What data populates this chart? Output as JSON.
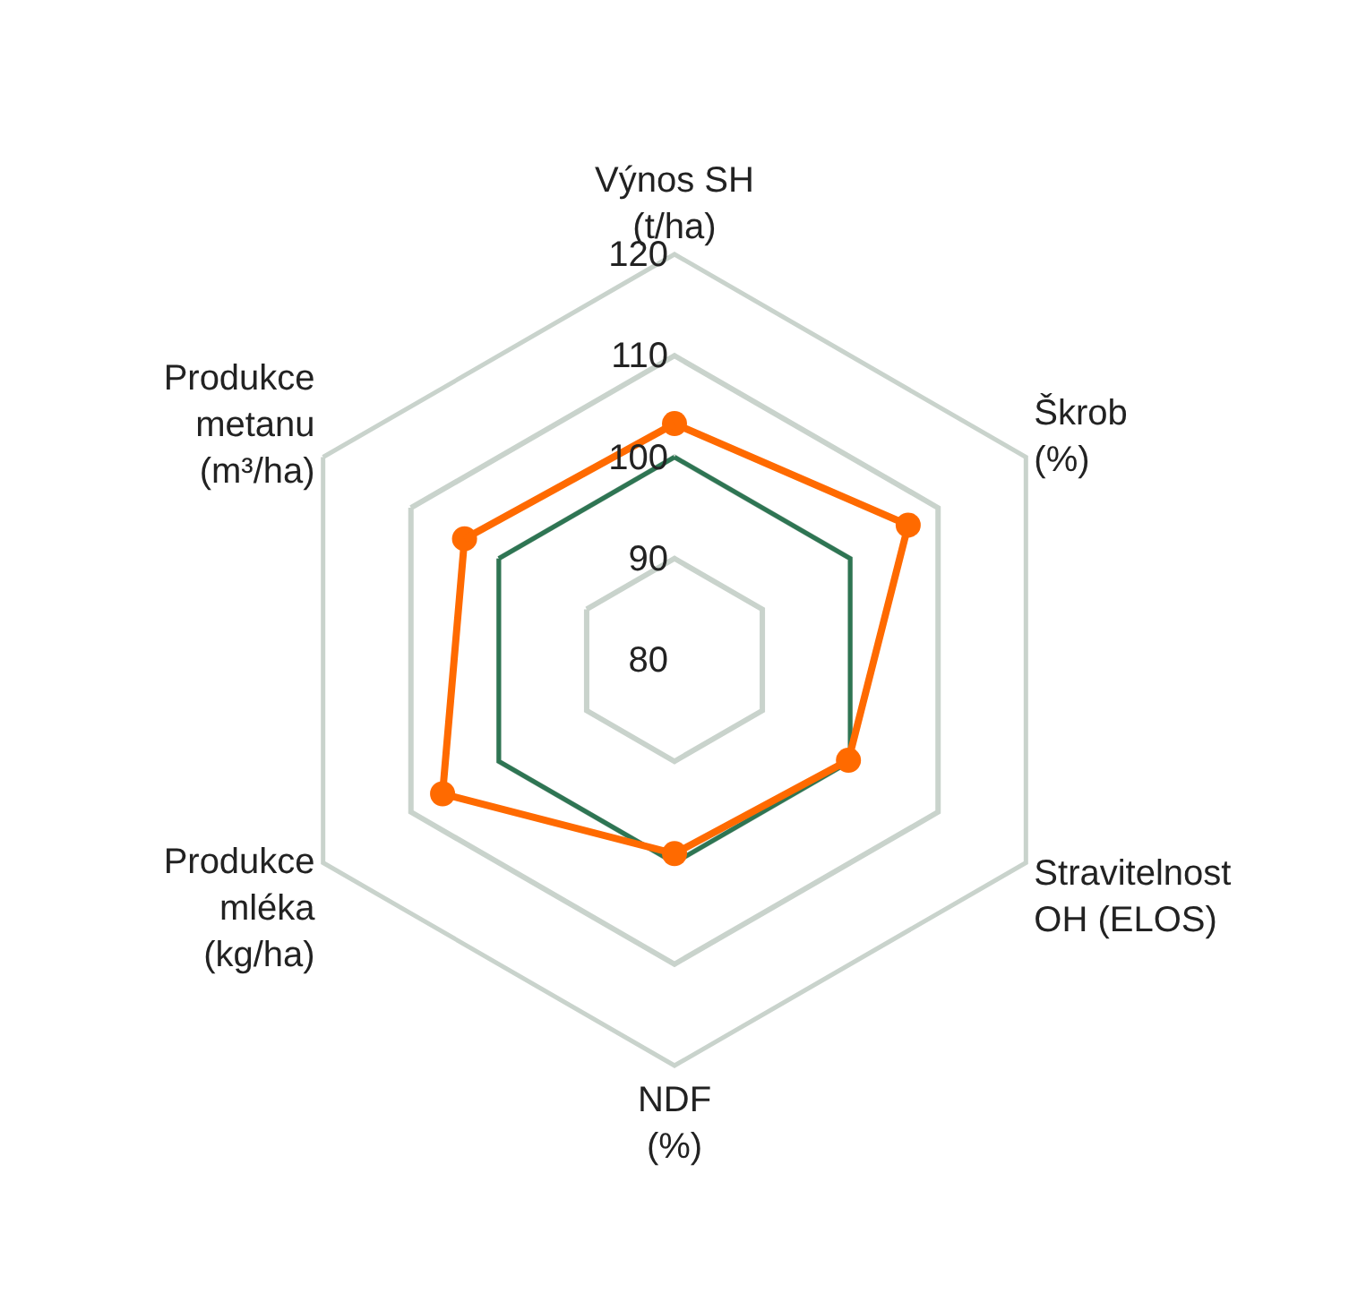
{
  "chart_data": {
    "type": "radar",
    "categories": [
      "Výnos SH\n(t/ha)",
      "Škrob\n(%)",
      "Stravitelnost\nOH (ELOS)",
      "NDF\n(%)",
      "Produkce\nmléka\n(kg/ha)",
      "Produkce\nmetanu\n(m³/ha)"
    ],
    "series": [
      {
        "color": "#2e7553",
        "values": [
          100,
          100,
          100,
          100,
          100,
          100
        ],
        "marker": "none"
      },
      {
        "color": "#ff6a00",
        "values": [
          103.3,
          106.6,
          99.8,
          99.1,
          106.4,
          103.9
        ],
        "marker": "circle"
      }
    ],
    "ylim": [
      80,
      120
    ],
    "yticks": [
      80,
      90,
      100,
      110,
      120
    ],
    "grid": true
  }
}
